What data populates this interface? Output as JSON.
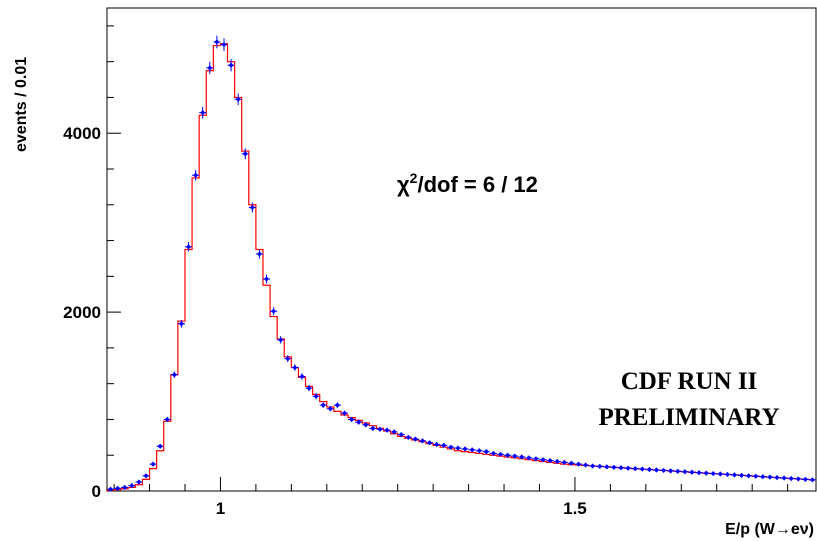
{
  "chart_data": {
    "type": "histogram",
    "xlabel": "E/p (W→eν)",
    "ylabel": "events / 0.01",
    "xlim": [
      0.84,
      1.84
    ],
    "ylim": [
      0,
      5400
    ],
    "bin_width": 0.01,
    "x_ticks": [
      1,
      1.5
    ],
    "x_tick_labels": [
      "1",
      "1.5"
    ],
    "y_ticks": [
      0,
      2000,
      4000
    ],
    "y_tick_labels": [
      "0",
      "2000",
      "4000"
    ],
    "grid": false,
    "annotations": {
      "chi2_symbol": "χ",
      "chi2_superscript": "2",
      "chi2_text": "/dof = 6 / 12",
      "cdf_line1": "CDF RUN II",
      "cdf_line2": "PRELIMINARY"
    },
    "series": [
      {
        "style": "data-points",
        "color": "#0000ff",
        "x": [
          0.845,
          0.855,
          0.865,
          0.875,
          0.885,
          0.895,
          0.905,
          0.915,
          0.925,
          0.935,
          0.945,
          0.955,
          0.965,
          0.975,
          0.985,
          0.995,
          1.005,
          1.015,
          1.025,
          1.035,
          1.045,
          1.055,
          1.065,
          1.075,
          1.085,
          1.095,
          1.105,
          1.115,
          1.125,
          1.135,
          1.145,
          1.155,
          1.165,
          1.175,
          1.185,
          1.195,
          1.205,
          1.215,
          1.225,
          1.235,
          1.245,
          1.255,
          1.265,
          1.275,
          1.285,
          1.295,
          1.305,
          1.315,
          1.325,
          1.335,
          1.345,
          1.355,
          1.365,
          1.375,
          1.385,
          1.395,
          1.405,
          1.415,
          1.425,
          1.435,
          1.445,
          1.455,
          1.465,
          1.475,
          1.485,
          1.495,
          1.505,
          1.515,
          1.525,
          1.535,
          1.545,
          1.555,
          1.565,
          1.575,
          1.585,
          1.595,
          1.605,
          1.615,
          1.625,
          1.635,
          1.645,
          1.655,
          1.665,
          1.675,
          1.685,
          1.695,
          1.705,
          1.715,
          1.725,
          1.735,
          1.745,
          1.755,
          1.765,
          1.775,
          1.785,
          1.795,
          1.805,
          1.815,
          1.825,
          1.835
        ],
        "y": [
          20,
          30,
          40,
          60,
          100,
          170,
          300,
          500,
          800,
          1300,
          1870,
          2730,
          3530,
          4230,
          4730,
          5020,
          4990,
          4760,
          4380,
          3770,
          3170,
          2650,
          2370,
          2010,
          1690,
          1480,
          1380,
          1280,
          1150,
          1060,
          960,
          920,
          960,
          870,
          800,
          770,
          740,
          700,
          690,
          680,
          660,
          630,
          600,
          580,
          560,
          540,
          520,
          510,
          490,
          480,
          470,
          460,
          450,
          440,
          420,
          410,
          400,
          390,
          380,
          370,
          360,
          350,
          340,
          330,
          320,
          310,
          300,
          290,
          280,
          275,
          270,
          265,
          260,
          255,
          250,
          245,
          240,
          235,
          230,
          225,
          220,
          215,
          210,
          205,
          200,
          195,
          190,
          185,
          180,
          175,
          170,
          165,
          160,
          155,
          150,
          145,
          140,
          135,
          130,
          125
        ],
        "y_err": [
          4,
          5,
          6,
          8,
          10,
          13,
          17,
          22,
          28,
          36,
          43,
          52,
          59,
          65,
          69,
          71,
          71,
          69,
          66,
          61,
          56,
          51,
          49,
          45,
          41,
          38,
          37,
          36,
          34,
          33,
          31,
          30,
          31,
          29,
          28,
          28,
          27,
          26,
          26,
          26,
          26,
          25,
          24,
          24,
          24,
          23,
          23,
          23,
          22,
          22,
          22,
          21,
          21,
          21,
          20,
          20,
          20,
          20,
          19,
          19,
          19,
          19,
          18,
          18,
          18,
          18,
          17,
          17,
          17,
          17,
          16,
          16,
          16,
          16,
          16,
          16,
          15,
          15,
          15,
          15,
          15,
          15,
          14,
          14,
          14,
          14,
          14,
          14,
          13,
          13,
          13,
          13,
          13,
          13,
          12,
          12,
          12,
          12,
          12,
          11
        ]
      },
      {
        "style": "step-histogram",
        "color": "#ff0000",
        "x": [
          0.845,
          0.855,
          0.865,
          0.875,
          0.885,
          0.895,
          0.905,
          0.915,
          0.925,
          0.935,
          0.945,
          0.955,
          0.965,
          0.975,
          0.985,
          0.995,
          1.005,
          1.015,
          1.025,
          1.035,
          1.045,
          1.055,
          1.065,
          1.075,
          1.085,
          1.095,
          1.105,
          1.115,
          1.125,
          1.135,
          1.145,
          1.155,
          1.165,
          1.175,
          1.185,
          1.195,
          1.205,
          1.215,
          1.225,
          1.235,
          1.245,
          1.255,
          1.265,
          1.275,
          1.285,
          1.295,
          1.305,
          1.315,
          1.325,
          1.335,
          1.345,
          1.355,
          1.365,
          1.375,
          1.385,
          1.395,
          1.405,
          1.415,
          1.425,
          1.435,
          1.445,
          1.455,
          1.465,
          1.475,
          1.485,
          1.495,
          1.505,
          1.515,
          1.525,
          1.535,
          1.545,
          1.555,
          1.565,
          1.575,
          1.585,
          1.595,
          1.605,
          1.615,
          1.625,
          1.635,
          1.645,
          1.655,
          1.665,
          1.675,
          1.685,
          1.695,
          1.705,
          1.715,
          1.725,
          1.735,
          1.745,
          1.755,
          1.765,
          1.775,
          1.785,
          1.795,
          1.805,
          1.815,
          1.825,
          1.835
        ],
        "y": [
          10,
          15,
          25,
          40,
          70,
          130,
          250,
          450,
          780,
          1300,
          1900,
          2700,
          3500,
          4200,
          4700,
          4980,
          5000,
          4800,
          4400,
          3800,
          3200,
          2700,
          2300,
          1950,
          1700,
          1500,
          1380,
          1270,
          1170,
          1080,
          1000,
          940,
          890,
          850,
          820,
          790,
          760,
          730,
          700,
          670,
          640,
          610,
          590,
          570,
          550,
          530,
          510,
          490,
          470,
          450,
          440,
          430,
          420,
          410,
          400,
          390,
          380,
          370,
          360,
          350,
          340,
          330,
          320,
          310,
          300,
          295,
          290,
          285,
          280,
          275,
          270,
          265,
          260,
          255,
          250,
          245,
          240,
          235,
          230,
          225,
          220,
          215,
          210,
          205,
          200,
          195,
          190,
          185,
          180,
          175,
          170,
          165,
          160,
          155,
          150,
          145,
          140,
          135,
          130,
          125
        ]
      }
    ]
  }
}
